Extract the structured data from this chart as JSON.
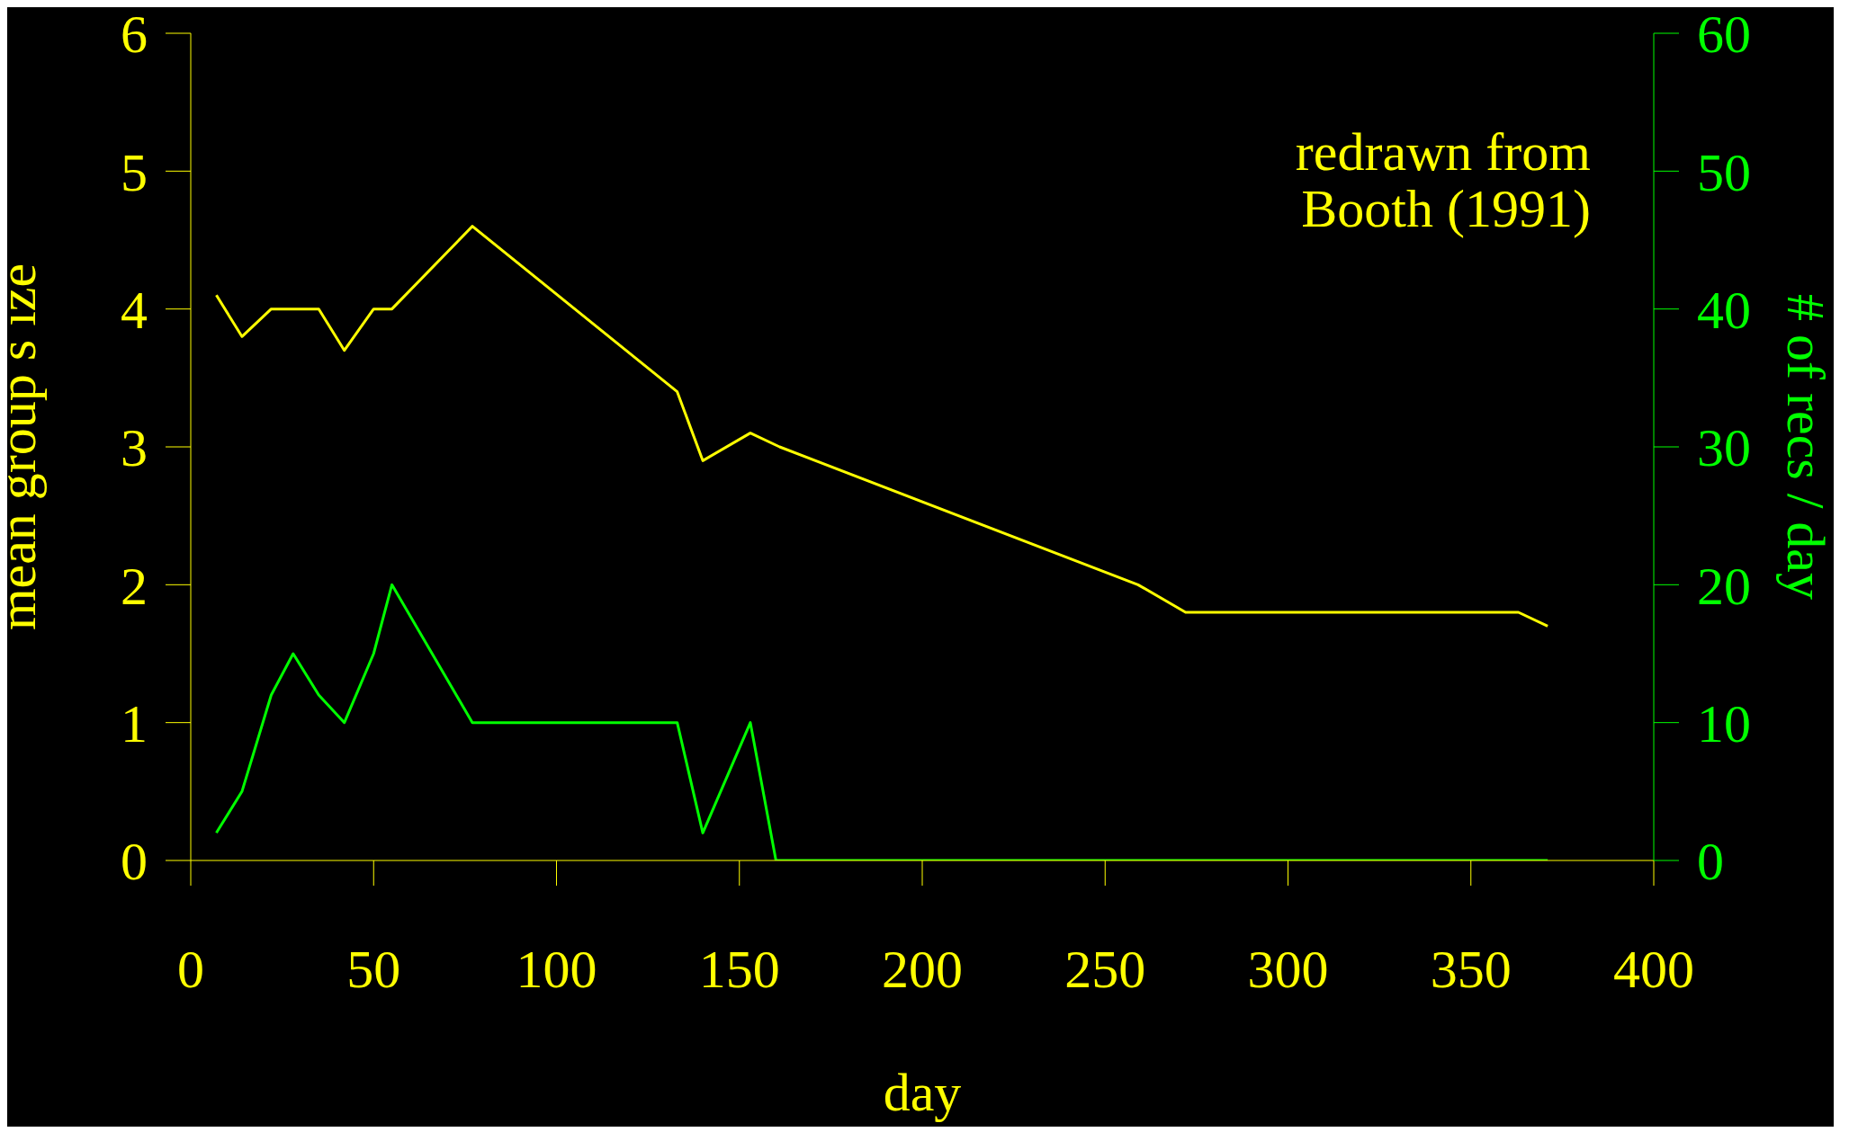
{
  "chart_data": {
    "type": "line",
    "xlabel": "day",
    "ylabel": "mean group s ize",
    "y2label": "# of recs / day",
    "annotations": [
      "redrawn from\nBooth (1991)"
    ],
    "xlim": [
      0,
      400
    ],
    "xticks": [
      0,
      50,
      100,
      150,
      200,
      250,
      300,
      350,
      400
    ],
    "ylim": [
      0,
      6
    ],
    "yticks": [
      0,
      1,
      2,
      3,
      4,
      5,
      6
    ],
    "y2lim": [
      0,
      60
    ],
    "y2ticks": [
      0,
      10,
      20,
      30,
      40,
      50,
      60
    ],
    "series": [
      {
        "color": "#ffff00",
        "x": [
          7,
          14,
          22,
          35,
          42,
          50,
          55,
          77,
          133,
          140,
          153,
          161,
          259,
          272,
          363,
          371
        ],
        "values": [
          4.1,
          3.8,
          4.0,
          4.0,
          3.7,
          4.0,
          4.0,
          4.6,
          3.4,
          2.9,
          3.1,
          3.0,
          2.0,
          1.8,
          1.8,
          1.7
        ]
      },
      {
        "color": "#00ff00",
        "axis": "y2",
        "x": [
          7,
          14,
          22,
          28,
          35,
          42,
          50,
          55,
          77,
          133,
          140,
          153,
          160,
          371
        ],
        "values": [
          2,
          5,
          12,
          15,
          12,
          10,
          15,
          20,
          10,
          10,
          2,
          10,
          0,
          0
        ]
      }
    ]
  }
}
